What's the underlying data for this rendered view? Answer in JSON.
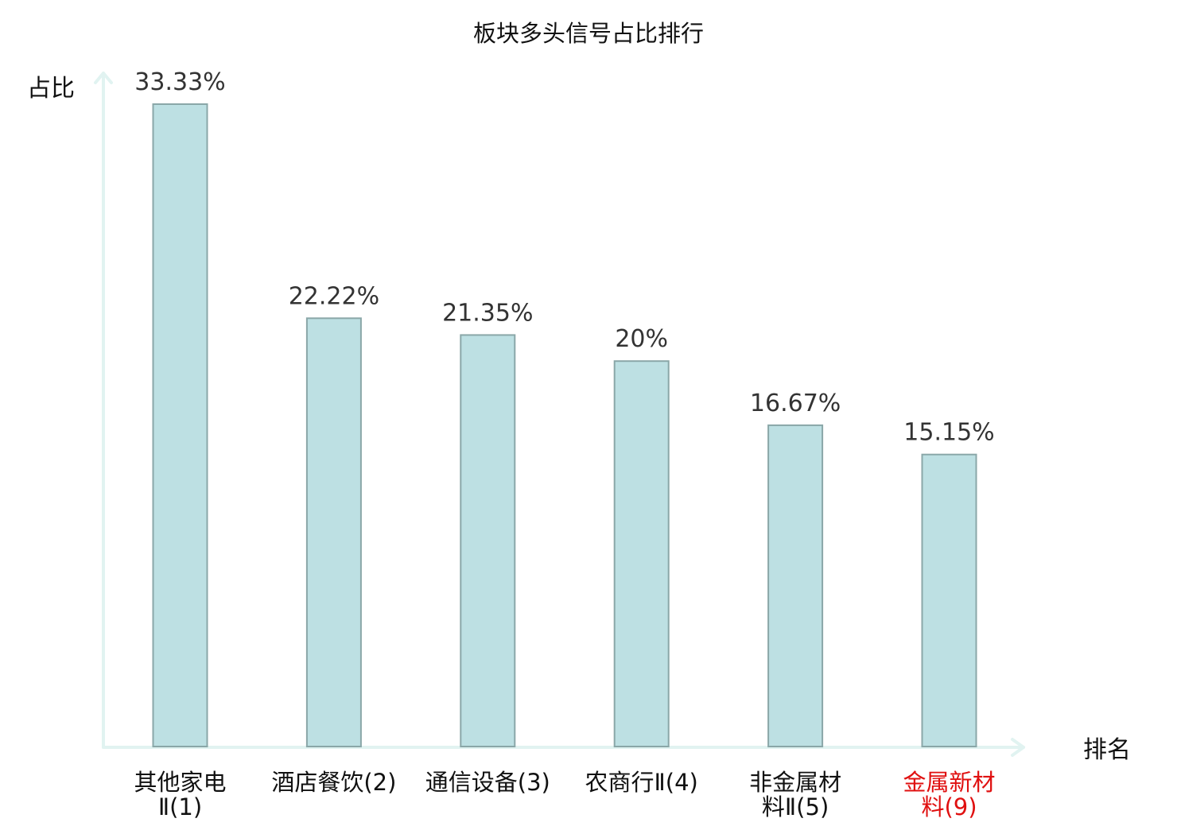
{
  "chart_data": {
    "type": "bar",
    "title": "板块多头信号占比排行",
    "ylabel": "占比",
    "xlabel": "排名",
    "categories": [
      [
        "其他家电",
        "Ⅱ(1)"
      ],
      [
        "酒店餐饮(2)"
      ],
      [
        "通信设备(3)"
      ],
      [
        "农商行Ⅱ(4)"
      ],
      [
        "非金属材",
        "料Ⅱ(5)"
      ],
      [
        "金属新材",
        "料(9)"
      ]
    ],
    "values": [
      33.33,
      22.22,
      21.35,
      20,
      16.67,
      15.15
    ],
    "value_labels": [
      "33.33%",
      "22.22%",
      "21.35%",
      "20%",
      "16.67%",
      "15.15%"
    ],
    "highlight_index": 5,
    "ylim": [
      0,
      33.33
    ],
    "grid": false,
    "colors": {
      "bar_fill": "#bde0e3",
      "bar_stroke": "#8aa7a8",
      "axis": "#e1f3f1",
      "text": "#333333",
      "label_text": "#111111",
      "highlight_text": "#e01010"
    }
  }
}
